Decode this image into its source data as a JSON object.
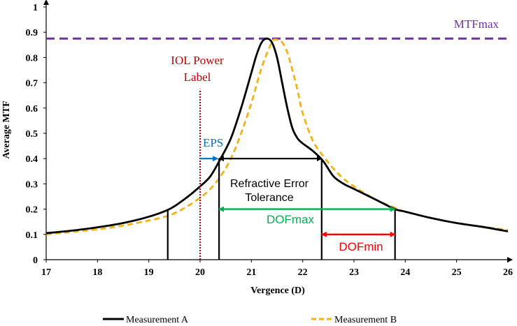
{
  "chart_data": {
    "type": "line",
    "xlabel": "Vergence (D)",
    "ylabel": "Average MTF",
    "xlim": [
      17,
      26
    ],
    "ylim": [
      0,
      1
    ],
    "x_ticks": [
      "17",
      "18",
      "19",
      "20",
      "21",
      "22",
      "23",
      "24",
      "25",
      "26"
    ],
    "y_ticks": [
      "0",
      "0.1",
      "0.2",
      "0.3",
      "0.4",
      "0.5",
      "0.6",
      "0.7",
      "0.8",
      "0.9",
      "1"
    ],
    "grid": false,
    "legend_position": "bottom",
    "series": [
      {
        "name": "Measurement A",
        "color": "#000000",
        "style": "solid",
        "x": [
          17,
          17.5,
          18,
          18.5,
          19,
          19.4,
          19.7,
          20,
          20.2,
          20.4,
          20.6,
          20.8,
          21,
          21.1,
          21.2,
          21.3,
          21.4,
          21.5,
          21.6,
          21.7,
          21.8,
          21.9,
          22,
          22.2,
          22.4,
          22.6,
          22.8,
          23,
          23.4,
          23.8,
          24,
          24.5,
          25,
          25.5,
          26
        ],
        "y": [
          0.105,
          0.115,
          0.128,
          0.145,
          0.17,
          0.2,
          0.24,
          0.29,
          0.33,
          0.4,
          0.48,
          0.6,
          0.74,
          0.81,
          0.86,
          0.875,
          0.86,
          0.8,
          0.7,
          0.6,
          0.52,
          0.48,
          0.46,
          0.43,
          0.39,
          0.33,
          0.3,
          0.28,
          0.24,
          0.2,
          0.19,
          0.165,
          0.145,
          0.13,
          0.112
        ]
      },
      {
        "name": "Measurement B",
        "color": "#f2b31a",
        "style": "dashed",
        "x": [
          17,
          17.5,
          18,
          18.5,
          19,
          19.4,
          19.7,
          20,
          20.2,
          20.4,
          20.6,
          20.8,
          21,
          21.2,
          21.4,
          21.5,
          21.6,
          21.7,
          21.8,
          21.9,
          22,
          22.2,
          22.4,
          22.6,
          22.8,
          23,
          23.4,
          23.8,
          24,
          24.5,
          25,
          25.5,
          26
        ],
        "y": [
          0.1,
          0.11,
          0.12,
          0.135,
          0.155,
          0.175,
          0.205,
          0.245,
          0.28,
          0.33,
          0.4,
          0.5,
          0.62,
          0.76,
          0.86,
          0.87,
          0.86,
          0.82,
          0.75,
          0.67,
          0.58,
          0.47,
          0.41,
          0.36,
          0.32,
          0.29,
          0.24,
          0.205,
          0.19,
          0.165,
          0.145,
          0.13,
          0.118
        ]
      }
    ],
    "reference_line": {
      "label": "MTFmax",
      "y": 0.875,
      "color": "#7030a0"
    },
    "annotations": {
      "iol_label_line1": "IOL Power",
      "iol_label_line2": "Label",
      "iol_x": 20,
      "iol_color": "#c00000",
      "eps_label": "EPS",
      "eps_color": "#0070c0",
      "eps_from": 20,
      "eps_to": 20.37,
      "eps_y": 0.4,
      "ret_label_line1": "Refractive Error",
      "ret_label_line2": "Tolerance",
      "ret_from": 20.37,
      "ret_to": 22.37,
      "ret_y": 0.4,
      "dofmax_label": "DOFmax",
      "dofmax_color": "#00b050",
      "dofmax_from": 20.37,
      "dofmax_to": 23.8,
      "dofmax_y": 0.2,
      "dofmin_label": "DOFmin",
      "dofmin_color": "#ff0000",
      "dofmin_from": 22.37,
      "dofmin_to": 23.8,
      "dofmin_y": 0.1,
      "vlines": [
        {
          "x": 19.37,
          "y": 0.2
        },
        {
          "x": 20.37,
          "y": 0.4
        },
        {
          "x": 22.37,
          "y": 0.4
        },
        {
          "x": 23.8,
          "y": 0.2
        }
      ]
    }
  }
}
